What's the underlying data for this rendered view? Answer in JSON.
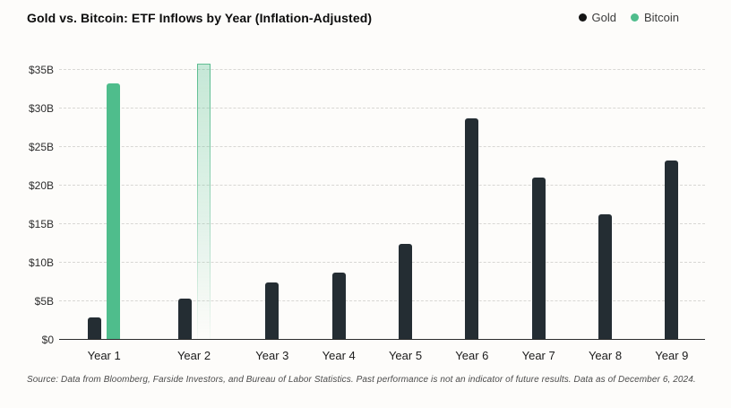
{
  "header": {
    "title": "Gold vs. Bitcoin: ETF Inflows by Year (Inflation-Adjusted)",
    "legend": [
      {
        "label": "Gold",
        "color": "#141414"
      },
      {
        "label": "Bitcoin",
        "color": "#4FBD8C"
      }
    ]
  },
  "footer": {
    "source": "Source: Data from Bloomberg, Farside Investors, and Bureau of Labor Statistics. Past performance is not an indicator of future results. Data as of December 6, 2024."
  },
  "chart_data": {
    "type": "bar",
    "title": "Gold vs. Bitcoin: ETF Inflows by Year (Inflation-Adjusted)",
    "unit": "USD billions",
    "categories": [
      "Year 1",
      "Year 2",
      "Year 3",
      "Year 4",
      "Year 5",
      "Year 6",
      "Year 7",
      "Year 8",
      "Year 9"
    ],
    "series": [
      {
        "name": "Gold",
        "color": "#242D33",
        "values": [
          2.9,
          5.4,
          7.5,
          8.7,
          12.5,
          28.7,
          21.0,
          16.3,
          23.2
        ]
      },
      {
        "name": "Bitcoin",
        "color": "#4FBD8C",
        "values": [
          33.2,
          35.8,
          null,
          null,
          null,
          null,
          null,
          null,
          null
        ],
        "partial_indices": [
          1
        ],
        "partial_note": "Year 2 bar drawn as faded/outlined (year in progress)"
      }
    ],
    "y_ticks": [
      "$0",
      "$5B",
      "$10B",
      "$15B",
      "$20B",
      "$25B",
      "$30B",
      "$35B"
    ],
    "y_tick_values": [
      0,
      5,
      10,
      15,
      20,
      25,
      30,
      35
    ],
    "y_max": 35,
    "xlabel": "",
    "ylabel": "",
    "grid": "horizontal dashed",
    "legend_position": "top-right"
  }
}
